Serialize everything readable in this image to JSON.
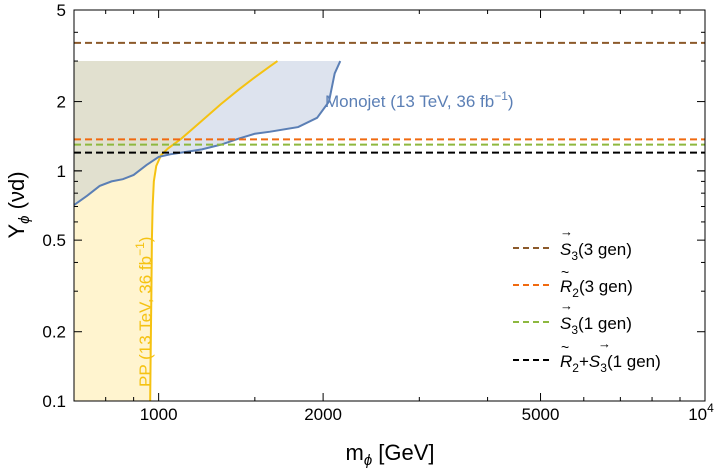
{
  "chart_data": {
    "type": "line",
    "title": "",
    "xlabel": {
      "main": "m",
      "sub": "ϕ",
      "rest": " [GeV]"
    },
    "ylabel": {
      "main": "Y",
      "sub": "ϕ",
      "rest": " (νd)"
    },
    "x_scale": "log",
    "y_scale": "log",
    "xlim": [
      700,
      10000
    ],
    "ylim": [
      0.1,
      5
    ],
    "grid": false,
    "x_ticks": [
      {
        "value": 1000,
        "label": "1000"
      },
      {
        "value": 2000,
        "label": "2000"
      },
      {
        "value": 5000,
        "label": "5000"
      },
      {
        "value": 10000,
        "label": "10",
        "sup": "4"
      }
    ],
    "y_ticks": [
      {
        "value": 0.1,
        "label": "0.1"
      },
      {
        "value": 0.2,
        "label": "0.2"
      },
      {
        "value": 0.5,
        "label": "0.5"
      },
      {
        "value": 1,
        "label": "1"
      },
      {
        "value": 2,
        "label": "2"
      },
      {
        "value": 5,
        "label": "5"
      }
    ],
    "regions": [
      {
        "name": "PP (13 TeV, 36 fb⁻¹)",
        "label": "PP (13 TeV, 36 fb",
        "label_sup": "−1",
        "label_close": ")",
        "color": "#f5c211",
        "fill": "#fff4cf",
        "boundary": [
          [
            700,
            3.0
          ],
          [
            800,
            3.0
          ],
          [
            900,
            3.0
          ],
          [
            1000,
            3.0
          ],
          [
            1200,
            3.0
          ],
          [
            1400,
            3.0
          ],
          [
            1650,
            3.0
          ],
          [
            1600,
            2.85
          ],
          [
            1500,
            2.55
          ],
          [
            1400,
            2.25
          ],
          [
            1300,
            1.95
          ],
          [
            1200,
            1.65
          ],
          [
            1100,
            1.38
          ],
          [
            1040,
            1.25
          ],
          [
            1010,
            1.17
          ],
          [
            990,
            1.05
          ],
          [
            980,
            0.9
          ],
          [
            975,
            0.7
          ],
          [
            972,
            0.5
          ],
          [
            970,
            0.3
          ],
          [
            968,
            0.2
          ],
          [
            966,
            0.13
          ],
          [
            965,
            0.1
          ],
          [
            700,
            0.1
          ]
        ]
      },
      {
        "name": "Monojet (13 TeV, 36 fb⁻¹)",
        "label": "Monojet (13 TeV, 36 fb",
        "label_sup": "−1",
        "label_close": ")",
        "color": "#5b7fb5",
        "fill": "#dde3ee",
        "boundary": [
          [
            700,
            0.71
          ],
          [
            740,
            0.78
          ],
          [
            780,
            0.86
          ],
          [
            820,
            0.9
          ],
          [
            860,
            0.92
          ],
          [
            900,
            0.96
          ],
          [
            950,
            1.06
          ],
          [
            1000,
            1.15
          ],
          [
            1050,
            1.18
          ],
          [
            1100,
            1.2
          ],
          [
            1150,
            1.22
          ],
          [
            1200,
            1.24
          ],
          [
            1300,
            1.3
          ],
          [
            1400,
            1.38
          ],
          [
            1500,
            1.45
          ],
          [
            1600,
            1.48
          ],
          [
            1800,
            1.55
          ],
          [
            1950,
            1.7
          ],
          [
            2050,
            2.0
          ],
          [
            2100,
            2.65
          ],
          [
            2150,
            3.0
          ],
          [
            700,
            3.0
          ]
        ]
      }
    ],
    "overlap_fill": "#e1e0cf",
    "series": [
      {
        "name": "S3(3 gen)",
        "label_main": "S",
        "label_sub": "3",
        "label_rest": "(3 gen)",
        "accent": "vec",
        "color": "#8c5a2b",
        "y": 3.6,
        "dashed": true
      },
      {
        "name": "R2(3 gen)",
        "label_main": "R",
        "label_sub": "2",
        "label_rest": "(3 gen)",
        "accent": "tilde",
        "color": "#f06a10",
        "y": 1.37,
        "dashed": true
      },
      {
        "name": "S3(1 gen)",
        "label_main": "S",
        "label_sub": "3",
        "label_rest": "(1 gen)",
        "accent": "vec",
        "color": "#8db83f",
        "y": 1.3,
        "dashed": true
      },
      {
        "name": "R2+S3(1 gen)",
        "label_main": "R",
        "label_sub": "2",
        "label_plus": "+",
        "label_main2": "S",
        "label_sub2": "3",
        "label_rest": "(1 gen)",
        "accent": "tilde",
        "accent2": "vec",
        "color": "#000000",
        "y": 1.2,
        "dashed": true
      }
    ],
    "legend_position": "bottom-right"
  }
}
